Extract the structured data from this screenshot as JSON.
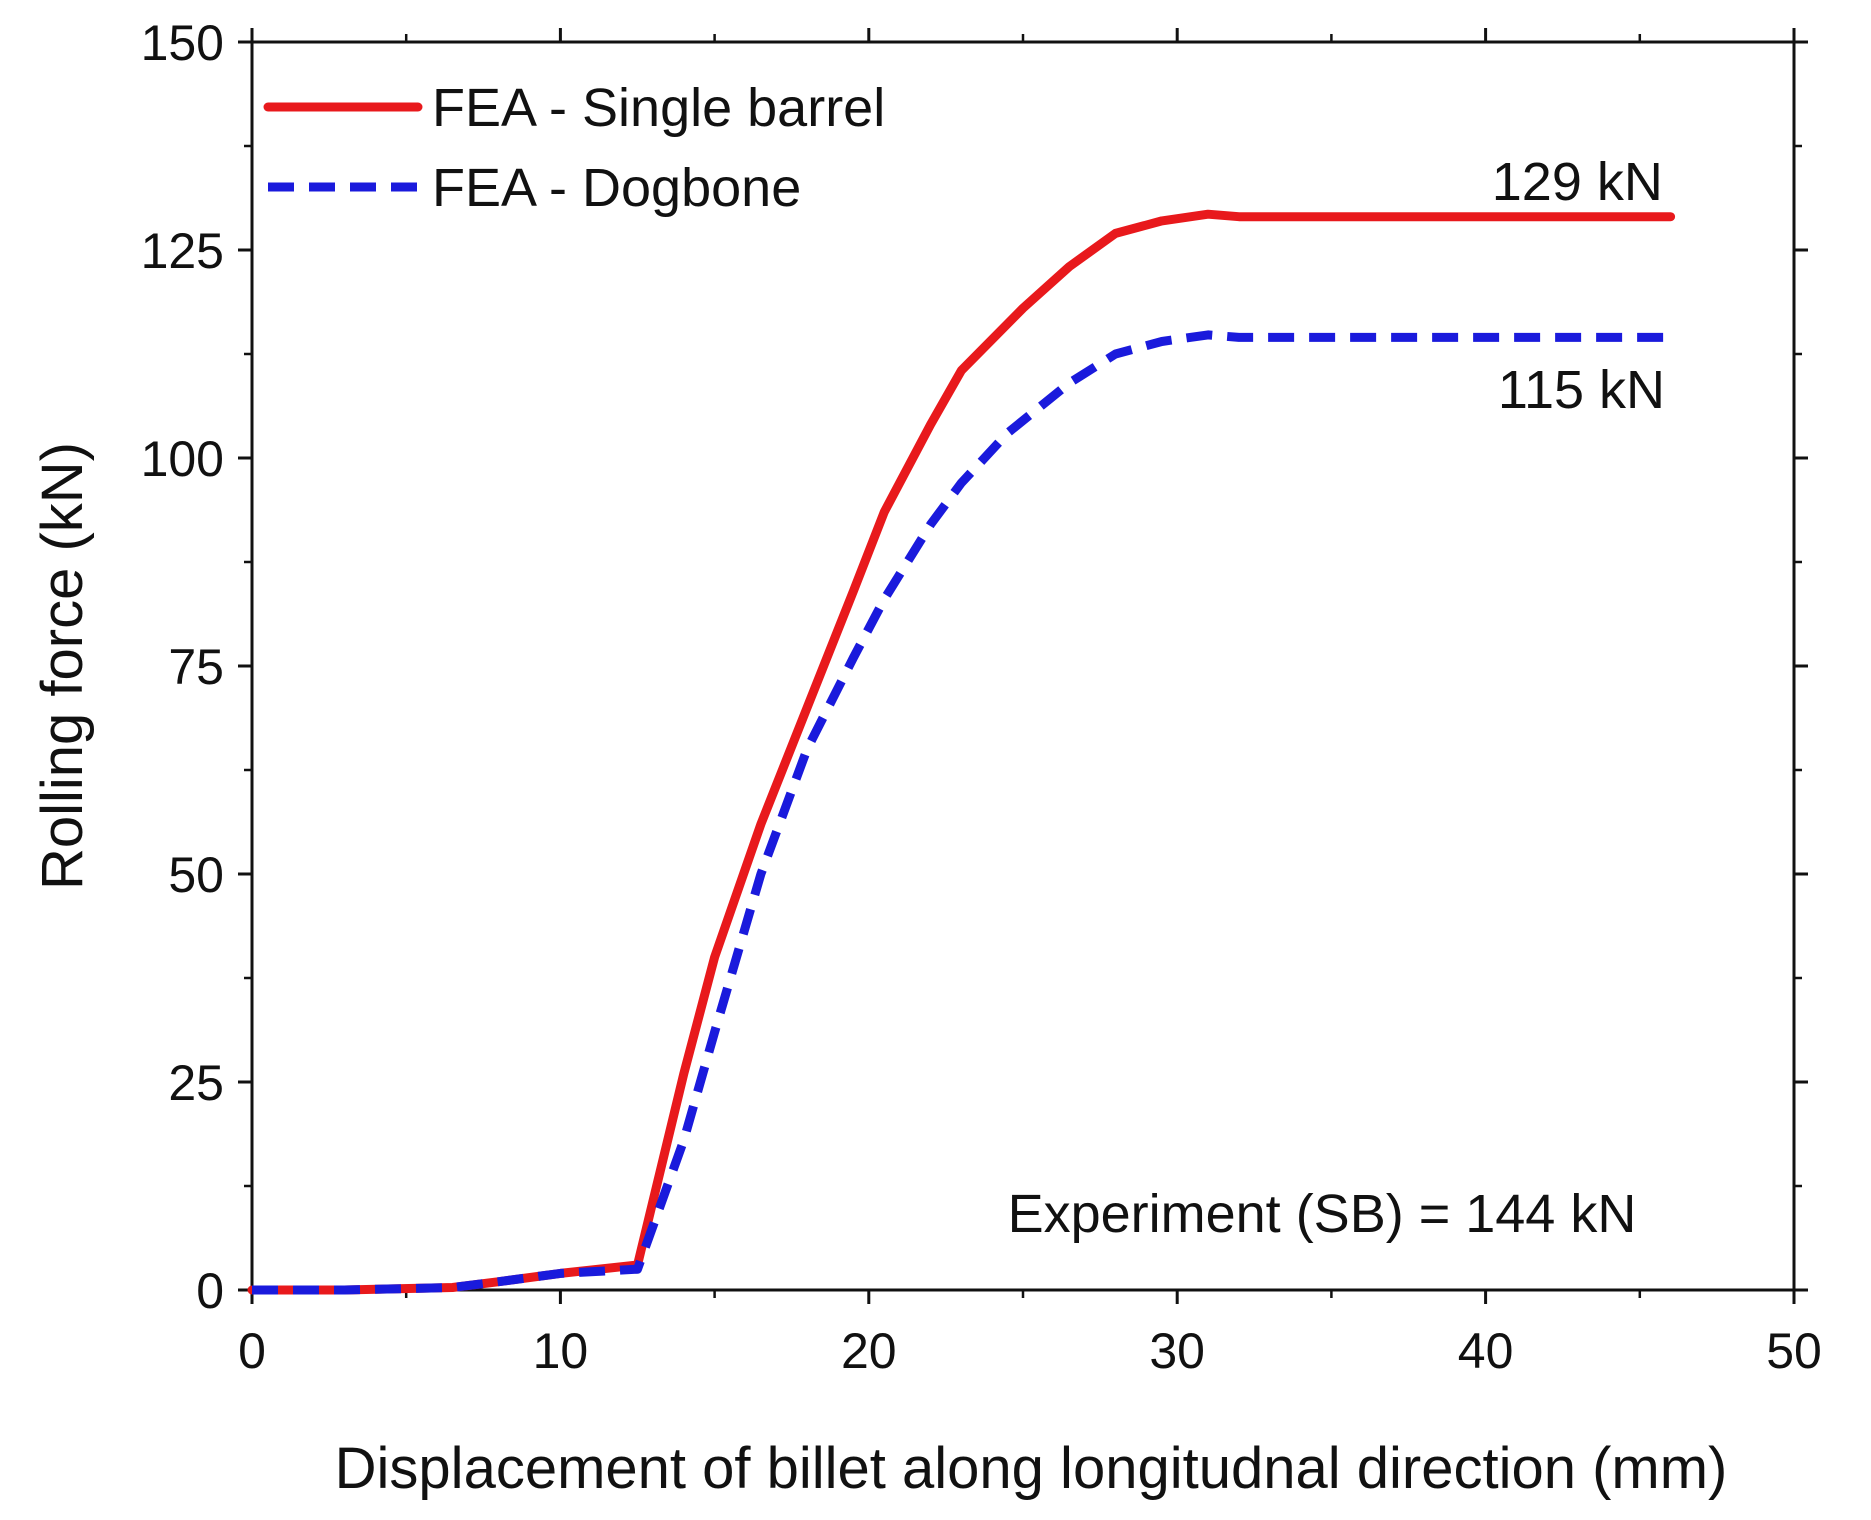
{
  "chart_data": {
    "type": "line",
    "title": "",
    "xlabel": "Displacement of billet along longitudnal direction (mm)",
    "ylabel": "Rolling force (kN)",
    "xlim": [
      0,
      50
    ],
    "ylim": [
      0,
      150
    ],
    "x_ticks": [
      0,
      10,
      20,
      30,
      40,
      50
    ],
    "y_ticks": [
      0,
      25,
      50,
      75,
      100,
      125,
      150
    ],
    "x_tick_labels": [
      "0",
      "10",
      "20",
      "30",
      "40",
      "50"
    ],
    "y_tick_labels": [
      "0",
      "25",
      "50",
      "75",
      "100",
      "125",
      "150"
    ],
    "grid": false,
    "legend_position": "top-left",
    "series": [
      {
        "name": "FEA - Single barrel",
        "color": "#e8191c",
        "style": "solid",
        "x": [
          0,
          3,
          6.5,
          8,
          10,
          12.5,
          14,
          15,
          16.5,
          18,
          19.5,
          20.5,
          22,
          23,
          25,
          26.5,
          28,
          29.5,
          31,
          32,
          35,
          40,
          46
        ],
        "y": [
          0,
          0,
          0.3,
          1,
          2,
          3,
          26,
          40,
          56,
          70,
          84,
          93.5,
          104,
          110.5,
          118,
          123,
          127,
          128.5,
          129.3,
          129,
          129,
          129,
          129
        ]
      },
      {
        "name": "FEA - Dogbone",
        "color": "#1a1adc",
        "style": "dashed",
        "x": [
          0,
          3,
          6.5,
          8,
          10,
          12.5,
          14,
          15,
          16.5,
          18,
          19.5,
          20.5,
          22,
          23,
          24.5,
          26.5,
          28,
          29.5,
          31,
          32,
          35,
          40,
          46
        ],
        "y": [
          0,
          0,
          0.3,
          1,
          2,
          2.5,
          18,
          31,
          50,
          65,
          76,
          83,
          92,
          97,
          103,
          109,
          112.5,
          114,
          114.8,
          114.5,
          114.5,
          114.5,
          114.5
        ]
      }
    ],
    "annotations": [
      {
        "text": "129 kN",
        "x": 40.2,
        "y": 131
      },
      {
        "text": "115 kN",
        "x": 40.4,
        "y": 106
      },
      {
        "text": "Experiment (SB) = 144 kN",
        "x": 24.5,
        "y": 7
      }
    ]
  }
}
